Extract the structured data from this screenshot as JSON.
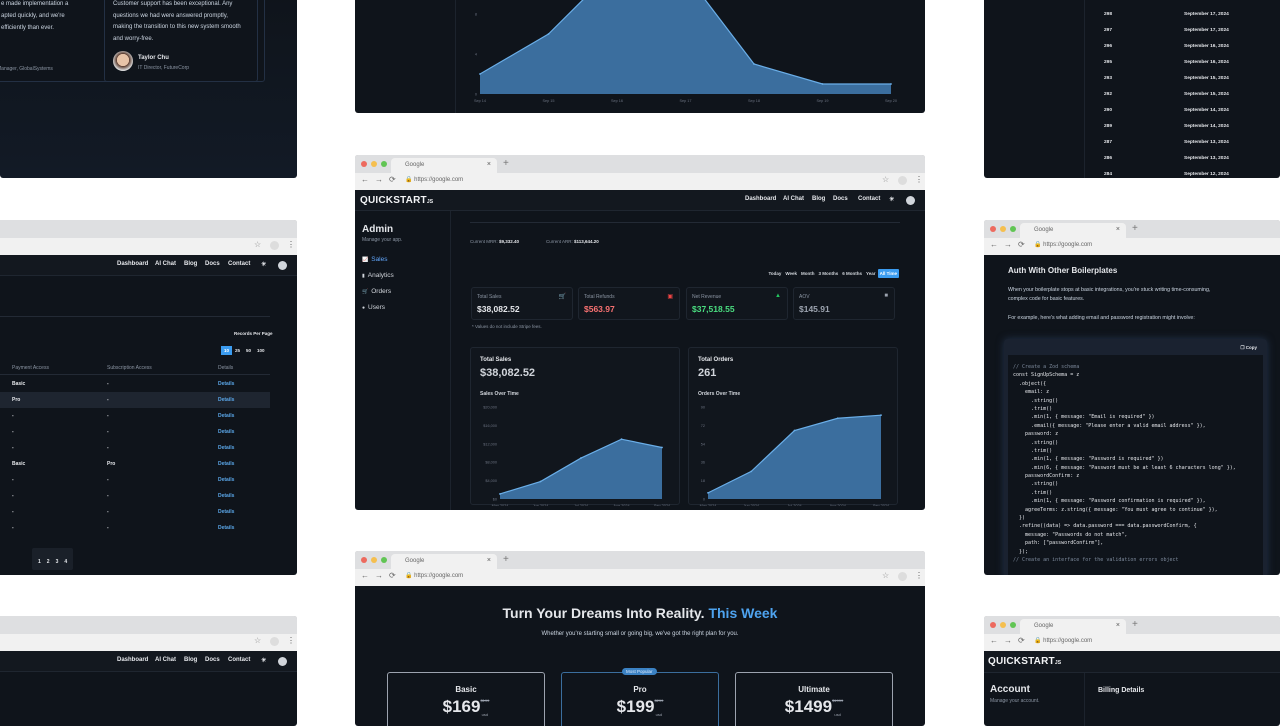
{
  "browser": {
    "tab_title": "Google",
    "url": "https://google.com"
  },
  "nav": {
    "links": [
      "Dashboard",
      "AI Chat",
      "Blog",
      "Docs",
      "Contact"
    ]
  },
  "logo": {
    "text": "QUICKSTART",
    "suffix": "JS"
  },
  "testimonials": {
    "card1": {
      "lines": [
        "e made implementation a",
        "apted quickly, and we're",
        "efficiently than ever."
      ],
      "role": "Manager, GlobalSystems"
    },
    "card2": {
      "lines": [
        "Customer support has been exceptional. Any",
        "questions we had were answered promptly,",
        "making the transition to this new system smooth",
        "and worry-free."
      ],
      "name": "Taylor Chu",
      "role": "IT Director, FutureCorp"
    }
  },
  "daily_chart": {
    "chart_data": {
      "type": "area",
      "x": [
        "Sep 14",
        "Sep 15",
        "Sep 16",
        "Sep 17",
        "Sep 18",
        "Sep 19",
        "Sep 20"
      ],
      "values": [
        2,
        6,
        15,
        12,
        3,
        1,
        1
      ],
      "yticks": [
        0,
        4,
        8
      ],
      "color": "#3b6e9e"
    }
  },
  "orders_table": {
    "rows": [
      {
        "id": "298",
        "date": "September 17, 2024"
      },
      {
        "id": "297",
        "date": "September 17, 2024"
      },
      {
        "id": "296",
        "date": "September 16, 2024"
      },
      {
        "id": "295",
        "date": "September 16, 2024"
      },
      {
        "id": "293",
        "date": "September 15, 2024"
      },
      {
        "id": "292",
        "date": "September 15, 2024"
      },
      {
        "id": "290",
        "date": "September 14, 2024"
      },
      {
        "id": "289",
        "date": "September 14, 2024"
      },
      {
        "id": "287",
        "date": "September 13, 2024"
      },
      {
        "id": "286",
        "date": "September 13, 2024"
      },
      {
        "id": "284",
        "date": "September 12, 2024"
      }
    ]
  },
  "users_table": {
    "records_label": "Records Per Page",
    "page_sizes": [
      "10",
      "25",
      "50",
      "100"
    ],
    "headers": [
      "Payment Access",
      "Subscription Access",
      "Details"
    ],
    "rows": [
      {
        "payment": "Basic",
        "subscription": "-",
        "details": "Details"
      },
      {
        "payment": "Pro",
        "subscription": "-",
        "details": "Details"
      },
      {
        "payment": "-",
        "subscription": "-",
        "details": "Details"
      },
      {
        "payment": "-",
        "subscription": "-",
        "details": "Details"
      },
      {
        "payment": "-",
        "subscription": "-",
        "details": "Details"
      },
      {
        "payment": "Basic",
        "subscription": "Pro",
        "details": "Details"
      },
      {
        "payment": "-",
        "subscription": "-",
        "details": "Details"
      },
      {
        "payment": "-",
        "subscription": "-",
        "details": "Details"
      },
      {
        "payment": "-",
        "subscription": "-",
        "details": "Details"
      },
      {
        "payment": "-",
        "subscription": "-",
        "details": "Details"
      }
    ],
    "pages": [
      "1",
      "2",
      "3",
      "4"
    ]
  },
  "admin": {
    "title": "Admin",
    "subtitle": "Manage your app.",
    "sidebar": [
      {
        "label": "Sales",
        "icon": "chart-line-icon",
        "active": true
      },
      {
        "label": "Analytics",
        "icon": "bar-chart-icon"
      },
      {
        "label": "Orders",
        "icon": "cart-icon"
      },
      {
        "label": "Users",
        "icon": "user-circle-icon"
      }
    ],
    "mrr_label": "Current MRR:",
    "mrr": "$9,332.40",
    "arr_label": "Current ARR:",
    "arr": "$113,644.20",
    "ranges": [
      "Today",
      "Week",
      "Month",
      "3 Months",
      "6 Months",
      "Year",
      "All Time"
    ],
    "active_range": "All Time",
    "stats": [
      {
        "label": "Total Sales",
        "value": "$38,082.52",
        "icon": "cart-icon",
        "color": "#e5e7eb",
        "icon_color": "#d1d5db"
      },
      {
        "label": "Total Refunds",
        "value": "$563.97",
        "icon": "receipt-icon",
        "color": "#f87171",
        "icon_color": "#ef4444"
      },
      {
        "label": "Net Revenue",
        "value": "$37,518.55",
        "icon": "money-bag-icon",
        "color": "#4ade80",
        "icon_color": "#22c55e"
      },
      {
        "label": "AOV",
        "value": "$145.91",
        "icon": "bag-icon",
        "color": "#9ca3af",
        "icon_color": "#9ca3af"
      }
    ],
    "note": "* Values do not include Stripe fees.",
    "sales": {
      "title": "Total Sales",
      "value": "$38,082.52",
      "chart_title": "Sales Over Time",
      "chart_data": {
        "type": "area",
        "x": [
          "May 2024",
          "Jun 2024",
          "Jul 2024",
          "Aug 2024",
          "Sep 2024"
        ],
        "values": [
          1100,
          3800,
          8900,
          13000,
          11200
        ],
        "yticks": [
          "$0",
          "$4,000",
          "$8,000",
          "$12,000",
          "$16,000",
          "$20,000"
        ],
        "ylim": [
          0,
          20000
        ],
        "color": "#3b6e9e"
      }
    },
    "orders": {
      "title": "Total Orders",
      "value": "261",
      "chart_title": "Orders Over Time",
      "chart_data": {
        "type": "area",
        "x": [
          "May 2024",
          "Jun 2024",
          "Jul 2024",
          "Aug 2024",
          "Sep 2024"
        ],
        "values": [
          6,
          27,
          67,
          79,
          82
        ],
        "yticks": [
          "0",
          "18",
          "36",
          "54",
          "72",
          "90"
        ],
        "ylim": [
          0,
          90
        ],
        "color": "#3b6e9e"
      }
    }
  },
  "docs": {
    "heading": "Auth With Other Boilerplates",
    "para1": "When your boilerplate stops at basic integrations, you're stuck writing time-consuming,",
    "para1b": "complex code for basic features.",
    "para2": "For example, here's what adding email and password registration might involve:",
    "copy_label": "Copy",
    "code": [
      "// Create a Zod schema",
      "const SignUpSchema = z",
      "  .object({",
      "    email: z",
      "      .string()",
      "      .trim()",
      "      .min(1, { message: \"Email is required\" })",
      "      .email({ message: \"Please enter a valid email address\" }),",
      "    password: z",
      "      .string()",
      "      .trim()",
      "      .min(1, { message: \"Password is required\" })",
      "      .min(6, { message: \"Password must be at least 6 characters long\" }),",
      "    passwordConfirm: z",
      "      .string()",
      "      .trim()",
      "      .min(1, { message: \"Password confirmation is required\" }),",
      "    agreeTerms: z.string({ message: \"You must agree to continue\" }),",
      "  })",
      "  .refine((data) => data.password === data.passwordConfirm, {",
      "    message: \"Passwords do not match\",",
      "    path: [\"passwordConfirm\"],",
      "  });",
      "// Create an interface for the validation errors object"
    ]
  },
  "pricing": {
    "heading": "Turn Your Dreams Into Reality.",
    "heading_accent": "This Week",
    "subtitle": "Whether you're starting small or going big, we've got the right plan for you.",
    "badge": "Most Popular",
    "plans": [
      {
        "name": "Basic",
        "price": "$169",
        "old_price": "$199",
        "unit": "usd"
      },
      {
        "name": "Pro",
        "price": "$199",
        "old_price": "$299",
        "unit": "usd"
      },
      {
        "name": "Ultimate",
        "price": "$1499",
        "old_price": "$1999",
        "unit": "usd"
      }
    ]
  },
  "account": {
    "title": "Account",
    "subtitle": "Manage your account.",
    "section": "Billing Details"
  },
  "colors": {
    "accent": "#3b9cf0",
    "chart_fill": "#3b6e9e",
    "chart_line": "#6aaee8",
    "panel_bg": "#0f141b"
  }
}
